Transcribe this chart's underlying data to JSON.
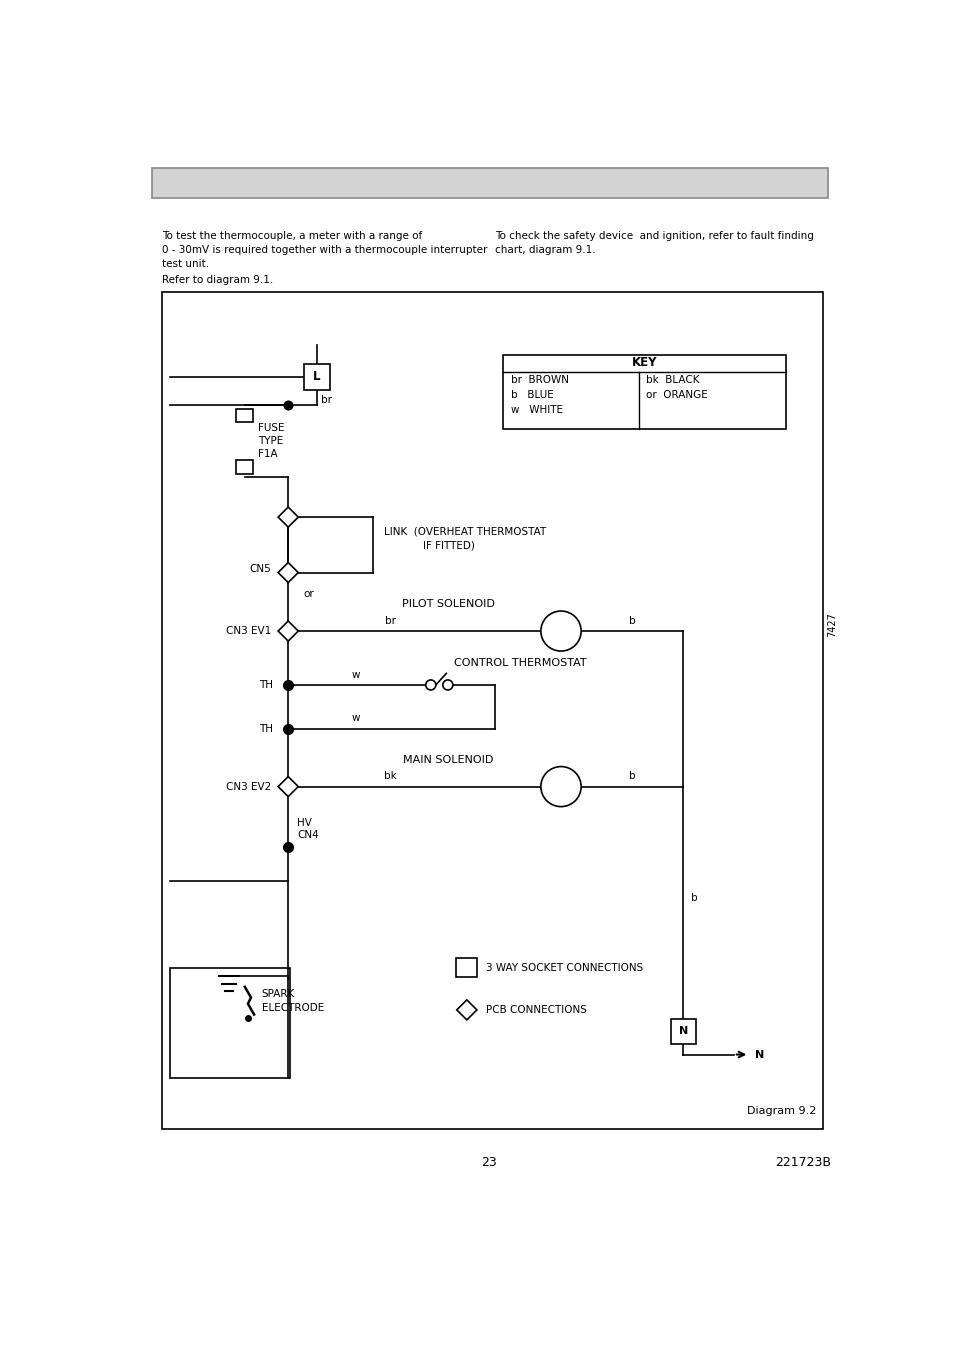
{
  "page_width": 9.54,
  "page_height": 13.51,
  "bg_color": "#ffffff",
  "header_box_color": "#d3d3d3",
  "header_box_border": "#888888",
  "text_color": "#000000",
  "para1_left": "To test the thermocouple, a meter with a range of\n0 - 30mV is required together with a thermocouple interrupter\ntest unit.",
  "para2_right": "To check the safety device  and ignition, refer to fault finding\nchart, diagram 9.1.",
  "refer_text": "Refer to diagram 9.1.",
  "diagram_label": "Diagram 9.2",
  "page_num": "23",
  "doc_num": "221723B",
  "watermark": "7427",
  "key_title": "KEY",
  "key_col1": "br  BROWN\nb   BLUE\nw   WHITE",
  "key_col2": "bk  BLACK\nor  ORANGE",
  "link_text": "LINK  (OVERHEAT THERMOSTAT\n            IF FITTED)",
  "pilot_label": "PILOT SOLENOID",
  "control_label": "CONTROL THERMOSTAT",
  "main_label": "MAIN SOLENOID",
  "fuse_label": "FUSE\nTYPE\nF1A",
  "spark_label": "SPARK\nELECTRODE",
  "hv_label": "HV\nCN4",
  "cn5_label": "CN5",
  "cn3ev1_label": "CN3 EV1",
  "cn3ev2_label": "CN3 EV2",
  "th1_label": "TH",
  "th2_label": "TH",
  "socket_label": "3 WAY SOCKET CONNECTIONS",
  "pcb_label": "PCB CONNECTIONS",
  "l_label": "L",
  "br_label": "br",
  "or_label": "or",
  "br2_label": "br",
  "bk_label": "bk",
  "w1_label": "w",
  "w2_label": "w",
  "b1_label": "b",
  "b2_label": "b",
  "b3_label": "b",
  "n_label": "N"
}
